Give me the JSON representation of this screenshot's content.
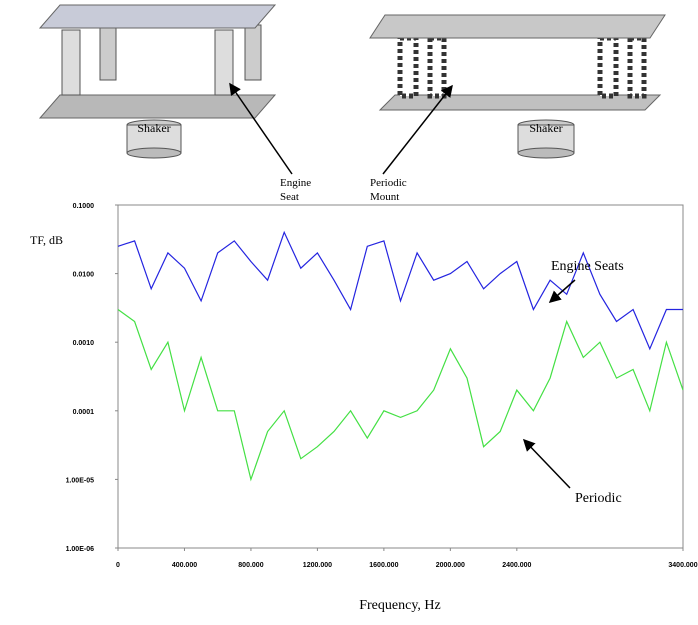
{
  "diagram": {
    "left_shaker": "Shaker",
    "right_shaker": "Shaker",
    "engine_seat": [
      "Engine",
      "Seat"
    ],
    "periodic_mount": [
      "Periodic",
      "Mount"
    ]
  },
  "chart_data": {
    "type": "line",
    "ylabel": "TF, dB",
    "xlabel": "Frequency, Hz",
    "annotations": [
      "Engine Seats",
      "Periodic"
    ],
    "ylog": true,
    "xlim": [
      0,
      3400
    ],
    "ylim": [
      1e-06,
      0.1
    ],
    "xticks": [
      0,
      {
        "value": 400,
        "label": "400.000"
      },
      {
        "value": 800,
        "label": "800.000"
      },
      {
        "value": 1200,
        "label": "1200.000"
      },
      {
        "value": 1600,
        "label": "1600.000"
      },
      {
        "value": 2000,
        "label": "2000.000"
      },
      {
        "value": 2400,
        "label": "2400.000"
      },
      {
        "value": 3400,
        "label": "3400.000"
      }
    ],
    "yticks": [
      {
        "value": 0.1,
        "label": "0.1000"
      },
      {
        "value": 0.01,
        "label": "0.0100"
      },
      {
        "value": 0.001,
        "label": "0.0010"
      },
      {
        "value": 0.0001,
        "label": "0.0001"
      },
      {
        "value": 1e-05,
        "label": "1.00E-05"
      },
      {
        "value": 1e-06,
        "label": "1.00E-06"
      }
    ],
    "x": [
      0,
      100,
      200,
      300,
      400,
      500,
      600,
      700,
      800,
      900,
      1000,
      1100,
      1200,
      1300,
      1400,
      1500,
      1600,
      1700,
      1800,
      1900,
      2000,
      2100,
      2200,
      2300,
      2400,
      2500,
      2600,
      2700,
      2800,
      2900,
      3000,
      3100,
      3200,
      3300,
      3400
    ],
    "series": [
      {
        "color": "#2424e0",
        "values": [
          0.025,
          0.03,
          0.006,
          0.02,
          0.012,
          0.004,
          0.02,
          0.03,
          0.015,
          0.008,
          0.04,
          0.012,
          0.02,
          0.008,
          0.003,
          0.025,
          0.03,
          0.004,
          0.02,
          0.008,
          0.01,
          0.015,
          0.006,
          0.01,
          0.015,
          0.003,
          0.008,
          0.005,
          0.02,
          0.005,
          0.002,
          0.003,
          0.0008,
          0.003,
          0.003
        ]
      },
      {
        "color": "#44e044",
        "values": [
          0.003,
          0.002,
          0.0004,
          0.001,
          0.0001,
          0.0006,
          0.0001,
          0.0001,
          1e-05,
          5e-05,
          0.0001,
          2e-05,
          3e-05,
          5e-05,
          0.0001,
          4e-05,
          0.0001,
          8e-05,
          0.0001,
          0.0002,
          0.0008,
          0.0003,
          3e-05,
          5e-05,
          0.0002,
          0.0001,
          0.0003,
          0.002,
          0.0006,
          0.001,
          0.0003,
          0.0004,
          0.0001,
          0.001,
          0.0002
        ]
      }
    ]
  }
}
